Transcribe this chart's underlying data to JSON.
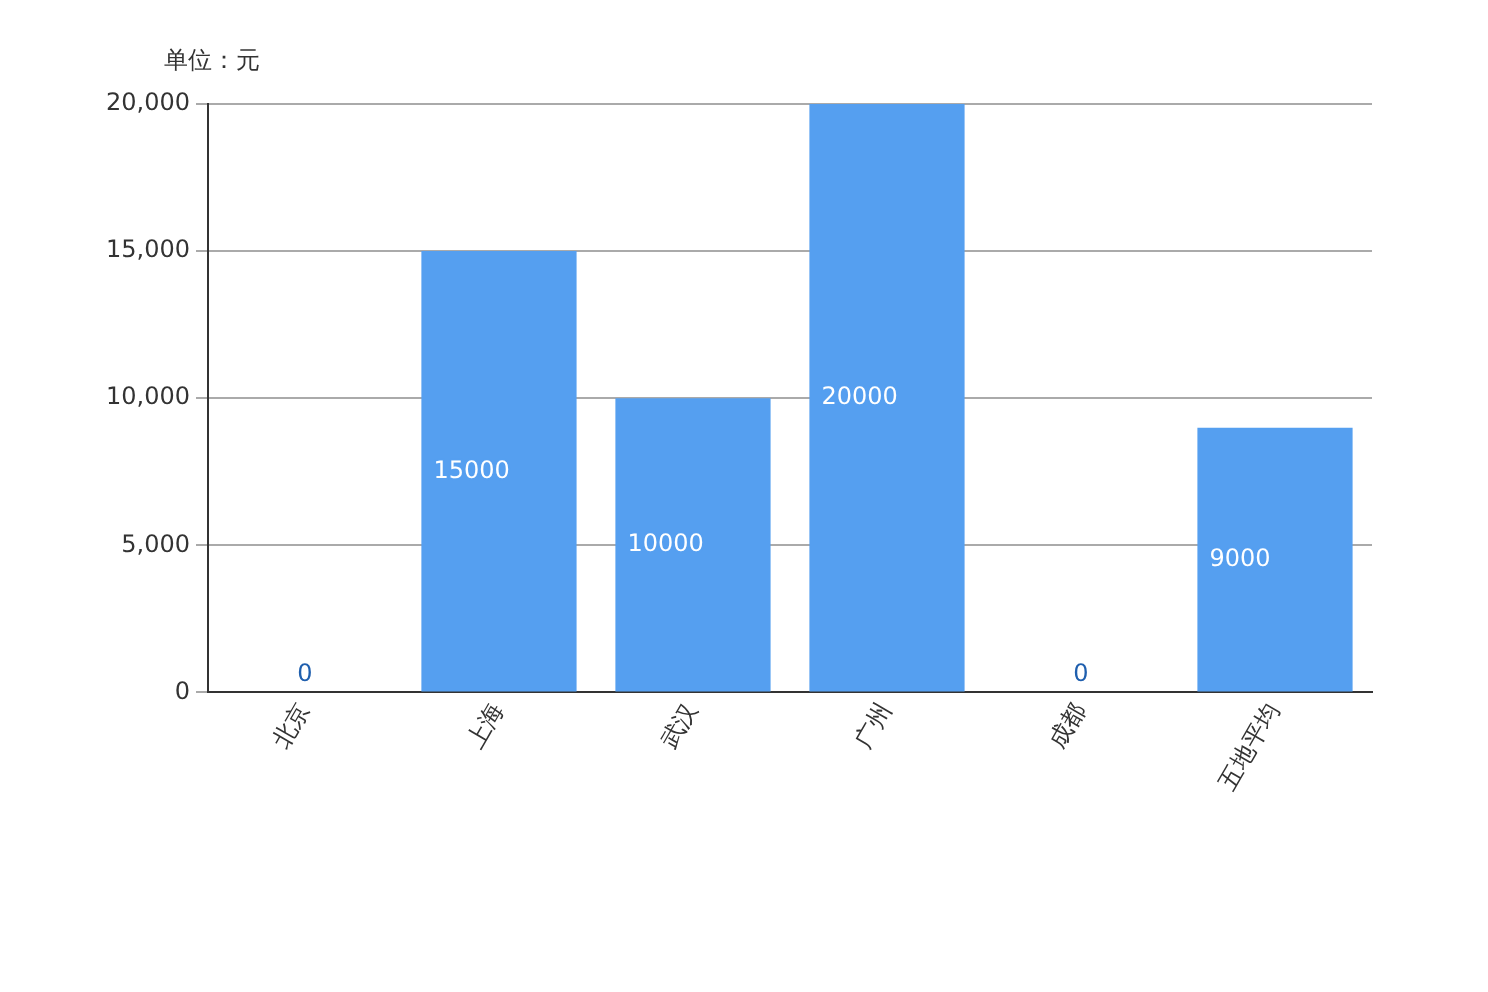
{
  "chart_data": {
    "type": "bar",
    "ylabel": "单位：元",
    "categories": [
      "北京",
      "上海",
      "武汉",
      "广州",
      "成都",
      "五地平均"
    ],
    "values": [
      0,
      15000,
      10000,
      20000,
      0,
      9000
    ],
    "color": "#559ff0",
    "ylim": [
      0,
      20000
    ],
    "yticks": [
      {
        "value": 0,
        "label": "0"
      },
      {
        "value": 5000,
        "label": "5,000"
      },
      {
        "value": 10000,
        "label": "10,000"
      },
      {
        "value": 15000,
        "label": "15,000"
      },
      {
        "value": 20000,
        "label": "20,000"
      }
    ],
    "grid": "y",
    "data_labels": true
  }
}
